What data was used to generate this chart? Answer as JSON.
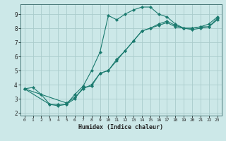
{
  "xlabel": "Humidex (Indice chaleur)",
  "xlim": [
    -0.5,
    23.5
  ],
  "ylim": [
    1.8,
    9.7
  ],
  "yticks": [
    2,
    3,
    4,
    5,
    6,
    7,
    8,
    9
  ],
  "xticks": [
    0,
    1,
    2,
    3,
    4,
    5,
    6,
    7,
    8,
    9,
    10,
    11,
    12,
    13,
    14,
    15,
    16,
    17,
    18,
    19,
    20,
    21,
    22,
    23
  ],
  "background_color": "#cce8e8",
  "grid_color": "#aacccc",
  "line_color": "#1a7a6e",
  "lines": [
    {
      "x": [
        0,
        1,
        2,
        3,
        4,
        5,
        6,
        7,
        8,
        9,
        10,
        11,
        12,
        13,
        14,
        15,
        16,
        17,
        18,
        19,
        20,
        21,
        22,
        23
      ],
      "y": [
        3.7,
        3.8,
        3.3,
        2.6,
        2.6,
        2.6,
        3.3,
        3.9,
        5.0,
        6.3,
        8.9,
        8.6,
        9.0,
        9.3,
        9.5,
        9.5,
        9.0,
        8.8,
        8.3,
        8.0,
        8.0,
        8.1,
        8.3,
        8.8
      ]
    },
    {
      "x": [
        0,
        3,
        4,
        5,
        6,
        7,
        8,
        9,
        10,
        11,
        12,
        13,
        14,
        15,
        16,
        17,
        18,
        19,
        20,
        21,
        22,
        23
      ],
      "y": [
        3.7,
        2.6,
        2.5,
        2.6,
        3.0,
        3.8,
        3.9,
        4.8,
        5.0,
        5.7,
        6.4,
        7.1,
        7.8,
        8.0,
        8.3,
        8.5,
        8.2,
        8.0,
        8.0,
        8.1,
        8.1,
        8.7
      ]
    },
    {
      "x": [
        0,
        5,
        6,
        7,
        8,
        9,
        10,
        11,
        12,
        13,
        14,
        15,
        16,
        17,
        18,
        19,
        20,
        21,
        22,
        23
      ],
      "y": [
        3.7,
        2.7,
        3.1,
        3.7,
        4.0,
        4.8,
        5.0,
        5.8,
        6.4,
        7.1,
        7.8,
        8.0,
        8.2,
        8.4,
        8.1,
        8.0,
        7.9,
        8.0,
        8.1,
        8.6
      ]
    }
  ]
}
